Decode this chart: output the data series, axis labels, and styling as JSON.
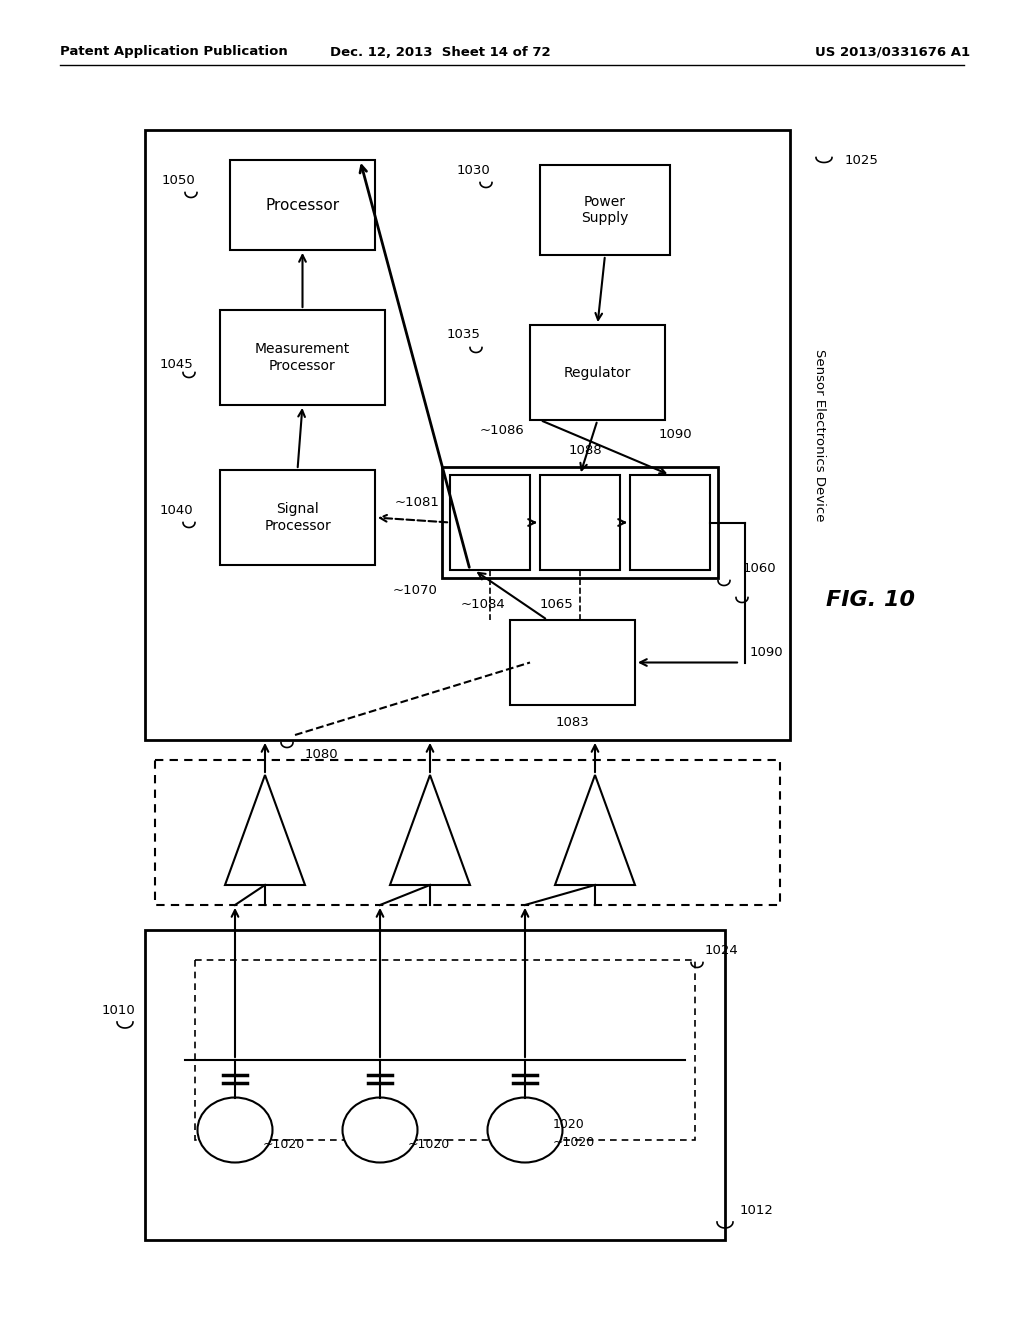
{
  "header_left": "Patent Application Publication",
  "header_mid": "Dec. 12, 2013  Sheet 14 of 72",
  "header_right": "US 2013/0331676 A1",
  "fig_label": "FIG. 10",
  "background": "#ffffff"
}
